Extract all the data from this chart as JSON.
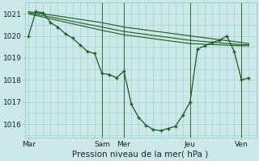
{
  "title": "",
  "xlabel": "Pression niveau de la mer( hPa )",
  "bg_color": "#cce8e8",
  "grid_color": "#99cccc",
  "line_color": "#1a5c1a",
  "x_tick_labels": [
    "Mar",
    "Sam",
    "Mer",
    "Jeu",
    "Ven"
  ],
  "x_tick_pos": [
    0,
    10,
    13,
    22,
    29
  ],
  "xlim": [
    -0.5,
    31
  ],
  "ylim": [
    1015.4,
    1021.5
  ],
  "yticks": [
    1016,
    1017,
    1018,
    1019,
    1020,
    1021
  ],
  "series1_x": [
    0,
    1,
    2,
    3,
    4,
    5,
    6,
    7,
    8,
    9,
    10,
    11,
    12,
    13,
    14,
    15,
    16,
    17,
    18,
    19,
    20,
    21,
    22,
    23,
    24,
    25,
    26,
    27,
    28,
    29,
    30
  ],
  "series1_y": [
    1020.0,
    1021.1,
    1021.05,
    1020.6,
    1020.4,
    1020.1,
    1019.9,
    1019.6,
    1019.3,
    1019.2,
    1018.3,
    1018.25,
    1018.1,
    1018.4,
    1016.9,
    1016.3,
    1015.95,
    1015.75,
    1015.7,
    1015.8,
    1015.9,
    1016.4,
    1017.0,
    1019.4,
    1019.55,
    1019.7,
    1019.8,
    1020.0,
    1019.3,
    1018.0,
    1018.1
  ],
  "series2_x": [
    0,
    10,
    13,
    22,
    29,
    30
  ],
  "series2_y": [
    1021.1,
    1020.6,
    1020.4,
    1020.0,
    1019.7,
    1019.65
  ],
  "series3_x": [
    0,
    10,
    13,
    22,
    29,
    30
  ],
  "series3_y": [
    1021.05,
    1020.4,
    1020.2,
    1019.8,
    1019.6,
    1019.6
  ],
  "series4_x": [
    0,
    10,
    13,
    22,
    29,
    30
  ],
  "series4_y": [
    1021.0,
    1020.25,
    1020.05,
    1019.65,
    1019.55,
    1019.55
  ],
  "vlines_x": [
    10,
    13,
    22,
    29
  ],
  "vline_color": "#2d6b2d",
  "grid_major_x_count": 15
}
